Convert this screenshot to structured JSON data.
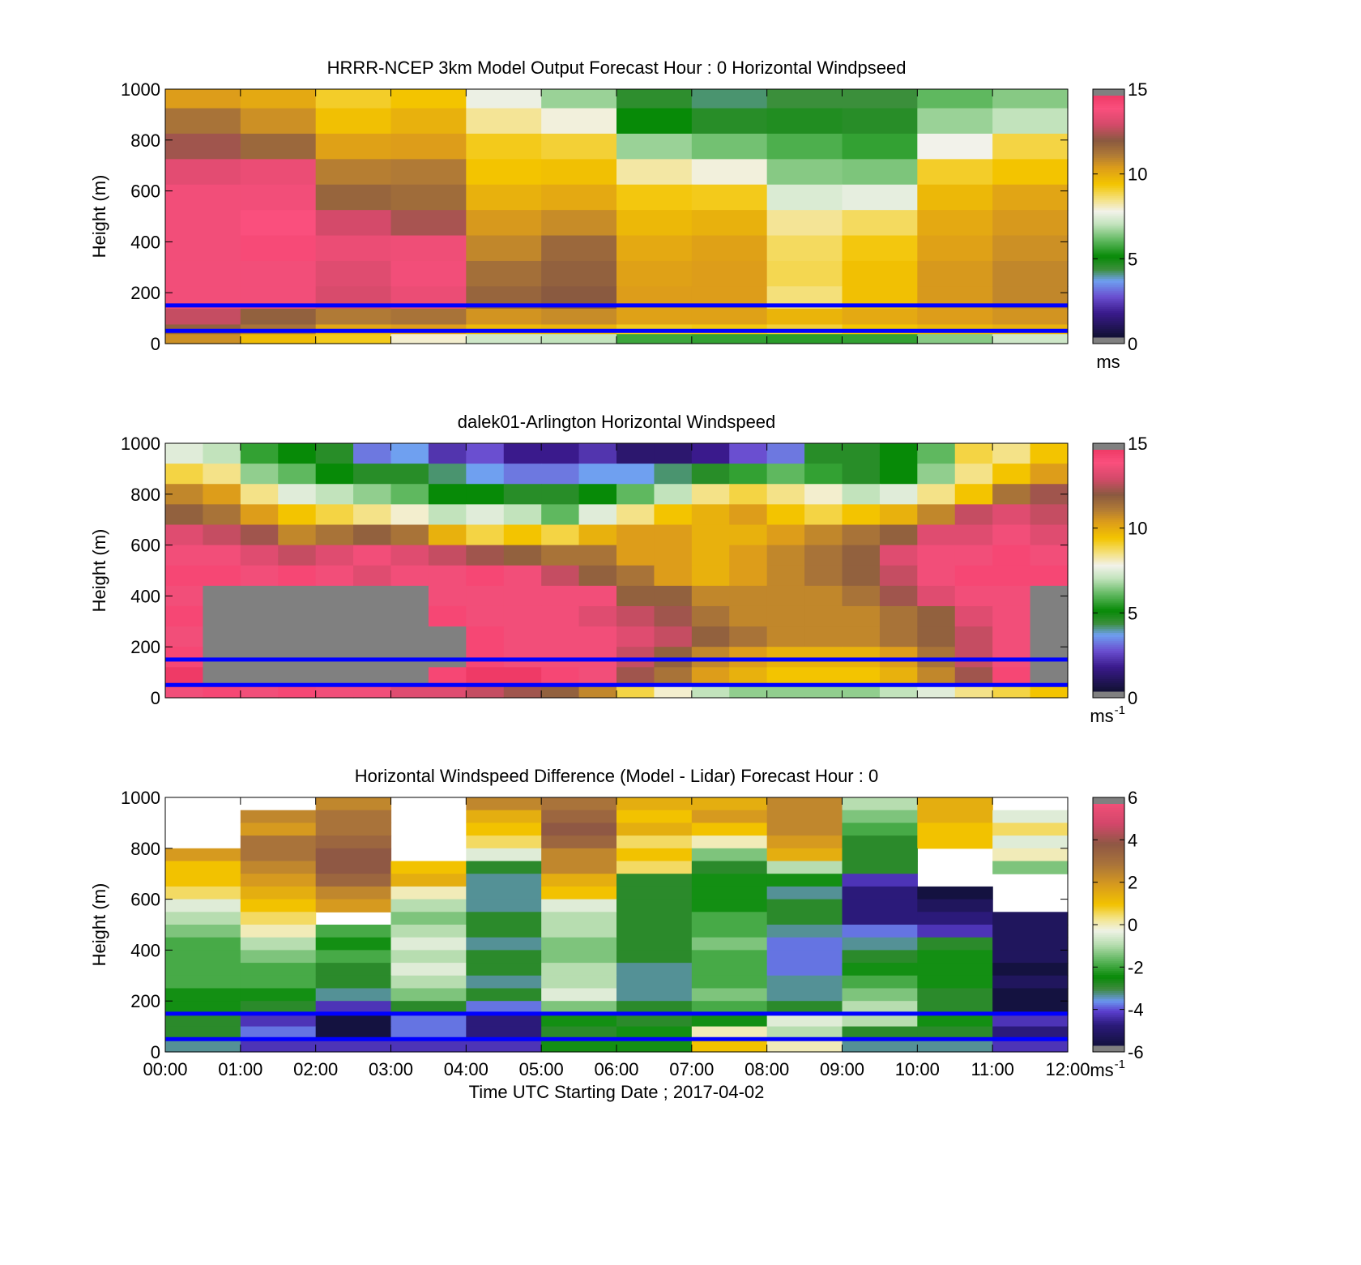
{
  "figure": {
    "xlabel": "Time UTC  Starting Date ; 2017-04-02",
    "xtick_labels": [
      "00:00",
      "01:00",
      "02:00",
      "03:00",
      "04:00",
      "05:00",
      "06:00",
      "07:00",
      "08:00",
      "09:00",
      "10:00",
      "11:00",
      "12:00"
    ],
    "reference_line_color": "#0000ff",
    "reference_line_heights_m": [
      150,
      50
    ]
  },
  "chart_data": [
    {
      "type": "heatmap",
      "id": "model",
      "title": "HRRR-NCEP 3km Model Output   Forecast Hour : 0 Horizontal Windpseed",
      "ylabel": "Height (m)",
      "ylim": [
        0,
        1000
      ],
      "yticks": [
        0,
        200,
        400,
        600,
        800,
        1000
      ],
      "xlim_hours": [
        0,
        12
      ],
      "colorbar": {
        "min": 0,
        "max": 15,
        "ticks": [
          0,
          5,
          10,
          15
        ],
        "unit_base": "ms",
        "unit_sup": "",
        "scale": "wind"
      },
      "heights_m": [
        975,
        875,
        775,
        675,
        575,
        475,
        375,
        275,
        175,
        100,
        50,
        25
      ],
      "hours": [
        0.5,
        1.5,
        2.5,
        3.5,
        4.5,
        5.5,
        6.5,
        7.5,
        8.5,
        9.5,
        10.5,
        11.5
      ],
      "values": [
        [
          10.5,
          10.2,
          9.2,
          9.5,
          7.7,
          6.6,
          4.4,
          4.0,
          4.2,
          4.2,
          6.0,
          6.4
        ],
        [
          11.5,
          10.8,
          9.6,
          10.0,
          8.4,
          7.9,
          5.0,
          4.5,
          4.6,
          4.5,
          6.6,
          7.0
        ],
        [
          12.5,
          11.8,
          10.4,
          10.5,
          9.3,
          9.1,
          6.6,
          6.2,
          5.8,
          5.5,
          7.8,
          9.0
        ],
        [
          13.6,
          13.8,
          11.2,
          11.3,
          9.5,
          9.6,
          8.3,
          7.9,
          6.4,
          6.3,
          9.2,
          9.5
        ],
        [
          14.0,
          14.0,
          11.9,
          11.7,
          10.0,
          10.2,
          9.4,
          9.3,
          7.4,
          7.6,
          9.8,
          10.3
        ],
        [
          14.0,
          14.2,
          13.2,
          12.6,
          10.6,
          10.9,
          9.8,
          10.0,
          8.4,
          8.8,
          10.2,
          10.6
        ],
        [
          14.0,
          14.4,
          13.8,
          13.9,
          11.0,
          11.8,
          10.2,
          10.4,
          8.8,
          9.4,
          10.4,
          10.8
        ],
        [
          14.0,
          14.0,
          13.5,
          14.0,
          11.6,
          12.0,
          10.4,
          10.5,
          8.9,
          9.6,
          10.6,
          11.0
        ],
        [
          14.0,
          14.0,
          13.3,
          13.8,
          11.9,
          12.2,
          10.5,
          10.5,
          8.6,
          9.6,
          10.6,
          11.0
        ],
        [
          13.0,
          12.0,
          11.3,
          11.5,
          10.7,
          10.9,
          10.4,
          10.4,
          9.9,
          10.2,
          10.5,
          10.7
        ],
        [
          12.0,
          11.5,
          10.3,
          10.5,
          9.8,
          9.9,
          9.3,
          9.4,
          9.1,
          9.5,
          9.8,
          10.0
        ],
        [
          10.8,
          9.7,
          9.3,
          8.0,
          7.2,
          7.0,
          5.6,
          5.5,
          5.4,
          5.5,
          6.4,
          7.2
        ]
      ]
    },
    {
      "type": "heatmap",
      "id": "lidar",
      "title": "dalek01-Arlington  Horizontal Windspeed",
      "ylabel": "Height (m)",
      "ylim": [
        0,
        1000
      ],
      "yticks": [
        0,
        200,
        400,
        600,
        800,
        1000
      ],
      "xlim_hours": [
        0,
        12
      ],
      "colorbar": {
        "min": 0,
        "max": 15,
        "ticks": [
          0,
          5,
          10,
          15
        ],
        "unit_base": "ms",
        "unit_sup": "-1",
        "scale": "wind"
      },
      "heights_m": [
        960,
        880,
        800,
        720,
        640,
        560,
        480,
        400,
        320,
        240,
        160,
        80,
        30
      ],
      "hours": [
        0.25,
        0.75,
        1.25,
        1.75,
        2.25,
        2.75,
        3.25,
        3.75,
        4.25,
        4.75,
        5.25,
        5.75,
        6.25,
        6.75,
        7.25,
        7.75,
        8.25,
        8.75,
        9.25,
        9.75,
        10.25,
        10.75,
        11.25,
        11.75
      ],
      "values": [
        [
          7.5,
          7.0,
          5.5,
          5.0,
          4.5,
          3.0,
          3.5,
          2.0,
          2.5,
          1.5,
          1.5,
          2.0,
          1.0,
          1.0,
          1.5,
          2.5,
          3.0,
          4.5,
          4.5,
          5.0,
          6.0,
          9.0,
          8.5,
          9.5
        ],
        [
          9.0,
          8.5,
          6.5,
          6.0,
          5.0,
          4.5,
          4.5,
          4.0,
          3.5,
          3.0,
          3.0,
          3.5,
          3.5,
          4.0,
          4.5,
          5.5,
          6.0,
          5.5,
          4.5,
          5.0,
          6.5,
          8.5,
          9.5,
          10.5
        ],
        [
          11.0,
          10.5,
          8.5,
          7.5,
          7.0,
          6.5,
          6.0,
          5.0,
          5.0,
          4.5,
          4.5,
          5.0,
          6.0,
          7.0,
          8.5,
          9.0,
          8.5,
          8.0,
          7.0,
          7.5,
          8.5,
          9.5,
          11.5,
          12.5
        ],
        [
          12.0,
          11.5,
          10.5,
          9.5,
          9.0,
          8.5,
          8.0,
          7.0,
          7.5,
          7.0,
          6.0,
          7.5,
          8.5,
          9.5,
          10.0,
          10.5,
          9.5,
          9.0,
          9.5,
          10.0,
          11.0,
          13.0,
          13.5,
          13.0
        ],
        [
          13.5,
          13.0,
          12.5,
          11.0,
          11.5,
          12.0,
          11.5,
          10.0,
          9.0,
          9.5,
          9.0,
          10.0,
          10.5,
          10.5,
          10.0,
          10.0,
          10.5,
          11.0,
          11.5,
          12.0,
          13.5,
          13.5,
          14.0,
          13.5
        ],
        [
          14.0,
          14.0,
          13.5,
          13.0,
          13.5,
          14.0,
          13.5,
          13.0,
          12.5,
          12.0,
          11.5,
          11.5,
          10.5,
          10.5,
          10.0,
          10.5,
          11.0,
          11.5,
          12.0,
          13.5,
          14.0,
          14.0,
          14.5,
          14.0
        ],
        [
          14.5,
          14.5,
          14.0,
          14.5,
          14.0,
          13.5,
          14.0,
          14.0,
          14.5,
          14.0,
          13.0,
          12.0,
          11.5,
          10.5,
          10.0,
          10.5,
          11.0,
          11.5,
          12.0,
          13.0,
          14.0,
          14.5,
          14.5,
          14.5
        ],
        [
          14.0,
          16.0,
          16.0,
          16.0,
          16.0,
          16.0,
          16.0,
          14.0,
          14.0,
          14.0,
          14.0,
          14.0,
          12.0,
          12.0,
          11.0,
          11.0,
          11.0,
          11.0,
          11.5,
          12.5,
          13.5,
          14.0,
          14.0,
          16.0
        ],
        [
          14.5,
          16.0,
          16.0,
          16.0,
          16.0,
          16.0,
          16.0,
          14.5,
          14.0,
          14.0,
          14.0,
          13.5,
          13.0,
          12.5,
          11.5,
          11.0,
          11.0,
          11.0,
          11.0,
          11.5,
          12.0,
          13.5,
          14.0,
          16.0
        ],
        [
          14.0,
          16.0,
          16.0,
          16.0,
          16.0,
          16.0,
          16.0,
          16.0,
          14.5,
          14.0,
          14.0,
          14.0,
          13.5,
          13.0,
          12.0,
          11.5,
          11.0,
          11.0,
          11.0,
          11.5,
          12.0,
          13.0,
          14.0,
          16.0
        ],
        [
          14.5,
          16.0,
          16.0,
          16.0,
          16.0,
          16.0,
          16.0,
          16.0,
          14.5,
          14.0,
          14.0,
          14.0,
          13.0,
          12.0,
          11.0,
          10.5,
          10.0,
          10.0,
          10.0,
          10.5,
          11.5,
          13.0,
          14.0,
          16.0
        ],
        [
          15.0,
          16.0,
          16.0,
          16.0,
          16.0,
          16.0,
          16.0,
          14.5,
          15.0,
          15.0,
          14.5,
          14.0,
          12.5,
          11.5,
          10.5,
          10.0,
          9.5,
          9.5,
          9.5,
          10.0,
          11.0,
          12.5,
          14.5,
          16.0
        ],
        [
          14.0,
          14.5,
          14.0,
          14.5,
          14.0,
          14.0,
          13.5,
          13.5,
          13.0,
          12.5,
          12.0,
          11.0,
          9.0,
          8.0,
          7.0,
          6.5,
          6.5,
          6.5,
          6.5,
          7.0,
          7.5,
          8.5,
          9.0,
          9.5
        ]
      ]
    },
    {
      "type": "heatmap",
      "id": "difference",
      "title": "Horizontal Windspeed Difference (Model - Lidar) Forecast Hour : 0",
      "ylabel": "Height (m)",
      "ylim": [
        0,
        1000
      ],
      "yticks": [
        0,
        200,
        400,
        600,
        800,
        1000
      ],
      "xlim_hours": [
        0,
        12
      ],
      "colorbar": {
        "min": -6,
        "max": 6,
        "ticks": [
          -6,
          -4,
          -2,
          0,
          2,
          4,
          6
        ],
        "unit_base": "ms",
        "unit_sup": "-1",
        "scale": "diff"
      },
      "heights_m": [
        975,
        925,
        875,
        825,
        775,
        725,
        675,
        625,
        575,
        525,
        475,
        425,
        375,
        325,
        275,
        225,
        175,
        125,
        75,
        25
      ],
      "hours": [
        0.5,
        1.5,
        2.5,
        3.5,
        4.5,
        5.5,
        6.5,
        7.5,
        8.5,
        9.5,
        10.5,
        11.5
      ],
      "values": [
        [
          null,
          null,
          2.5,
          null,
          2.5,
          3.0,
          1.5,
          1.5,
          2.5,
          -1.0,
          1.5,
          null
        ],
        [
          null,
          2.5,
          3.0,
          null,
          1.5,
          3.5,
          1.0,
          2.0,
          2.5,
          -1.5,
          1.5,
          -0.5
        ],
        [
          null,
          2.0,
          3.0,
          null,
          1.0,
          4.0,
          1.5,
          1.0,
          2.5,
          -2.0,
          1.0,
          0.5
        ],
        [
          null,
          3.0,
          3.5,
          null,
          0.5,
          3.5,
          0.5,
          0.0,
          2.0,
          -3.0,
          1.0,
          -0.5
        ],
        [
          2.0,
          3.0,
          4.0,
          null,
          -0.5,
          2.5,
          1.0,
          -1.5,
          1.5,
          -3.0,
          null,
          0.0
        ],
        [
          1.0,
          2.5,
          4.0,
          1.0,
          -3.0,
          2.5,
          0.5,
          -3.0,
          -1.0,
          -3.0,
          null,
          -1.5
        ],
        [
          1.0,
          2.0,
          3.5,
          1.5,
          -3.5,
          1.5,
          -3.0,
          -2.5,
          -2.5,
          -4.5,
          null,
          null
        ],
        [
          0.5,
          1.5,
          2.5,
          0.0,
          -3.5,
          1.0,
          -3.0,
          -2.5,
          -3.5,
          -5.0,
          -6.0,
          null
        ],
        [
          -0.5,
          1.0,
          2.0,
          -1.0,
          -3.5,
          -0.5,
          -3.0,
          -2.5,
          -3.0,
          -5.0,
          -5.5,
          null
        ],
        [
          -1.0,
          0.5,
          null,
          -1.5,
          -3.0,
          -1.0,
          -3.0,
          -2.0,
          -3.0,
          -5.0,
          -5.0,
          -5.5
        ],
        [
          -1.5,
          0.0,
          -2.0,
          -1.0,
          -3.0,
          -1.0,
          -3.0,
          -2.0,
          -3.5,
          -4.0,
          -4.5,
          -5.5
        ],
        [
          -2.0,
          -1.0,
          -2.5,
          -0.5,
          -3.5,
          -1.5,
          -3.0,
          -1.5,
          -4.0,
          -3.5,
          -3.0,
          -5.5
        ],
        [
          -2.0,
          -1.5,
          -2.0,
          -1.0,
          -3.0,
          -1.5,
          -3.0,
          -2.0,
          -4.0,
          -3.0,
          -2.5,
          -5.5
        ],
        [
          -2.0,
          -2.0,
          -3.0,
          -0.5,
          -3.0,
          -1.0,
          -3.5,
          -2.0,
          -4.0,
          -2.5,
          -2.5,
          -6.0
        ],
        [
          -2.0,
          -2.0,
          -3.0,
          -1.0,
          -3.5,
          -1.0,
          -3.5,
          -2.0,
          -3.5,
          -2.0,
          -2.5,
          -5.5
        ],
        [
          -2.5,
          -2.5,
          -3.5,
          -1.5,
          -3.0,
          -0.5,
          -3.5,
          -1.5,
          -3.5,
          -1.5,
          -3.0,
          -6.0
        ],
        [
          -2.5,
          -3.0,
          -4.5,
          -3.0,
          -4.0,
          -1.5,
          -3.0,
          -2.0,
          -3.0,
          -1.0,
          -3.0,
          -6.0
        ],
        [
          -3.0,
          -4.5,
          -6.0,
          -4.0,
          -5.0,
          -2.5,
          -3.0,
          -2.5,
          -0.5,
          -1.0,
          -2.5,
          -4.5
        ],
        [
          -3.0,
          -4.0,
          -6.5,
          -4.0,
          -5.0,
          -3.0,
          -2.5,
          0.0,
          -1.0,
          -3.0,
          -3.0,
          -5.0
        ],
        [
          -3.5,
          -4.5,
          -4.5,
          -4.5,
          -4.5,
          -2.5,
          -2.5,
          1.0,
          0.0,
          -3.5,
          -3.5,
          -4.5
        ]
      ]
    }
  ]
}
